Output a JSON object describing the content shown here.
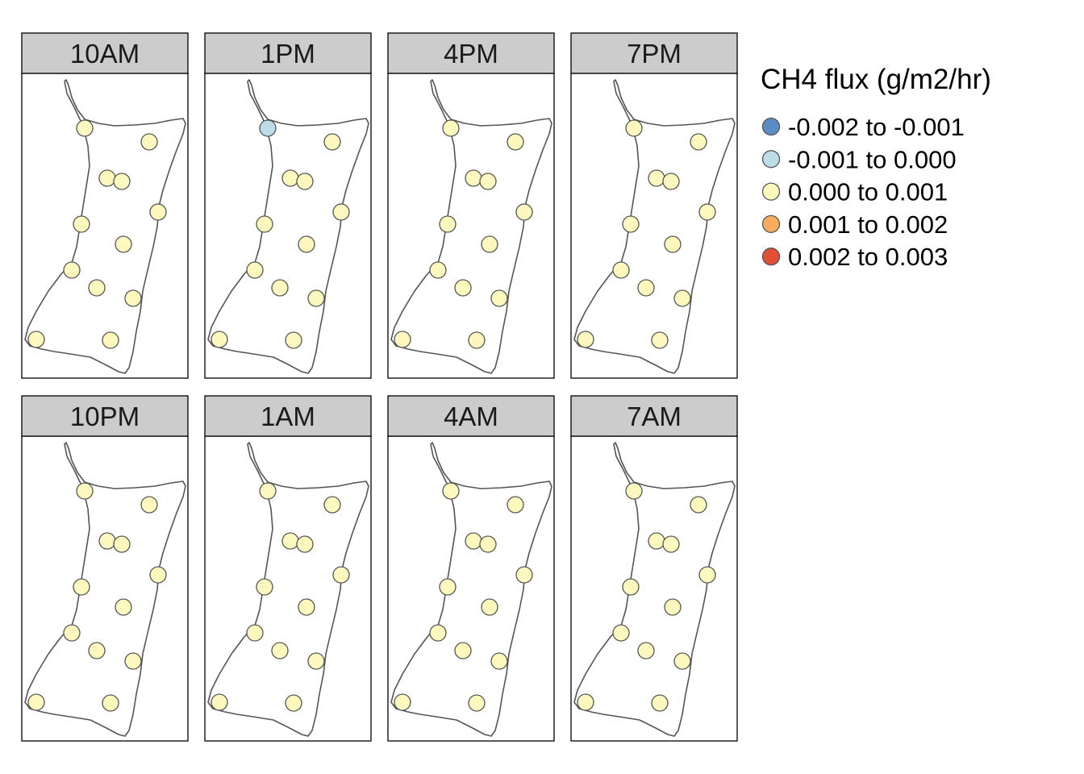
{
  "legend": {
    "title": "CH4 flux (g/m2/hr)",
    "items": [
      {
        "label": "-0.002 to -0.001",
        "color": "#5b8dc4"
      },
      {
        "label": "-0.001 to 0.000",
        "color": "#bcdde8"
      },
      {
        "label": "0.000 to 0.001",
        "color": "#fcf8be"
      },
      {
        "label": "0.001 to 0.002",
        "color": "#f9ab5e"
      },
      {
        "label": "0.002 to 0.003",
        "color": "#e24f35"
      }
    ]
  },
  "colors": {
    "strip_background": "#cccccc",
    "panel_border": "#000000",
    "outline": "#555555",
    "point_border": "#555555"
  },
  "panels": [
    {
      "title": "10AM",
      "point_classes": [
        2,
        2,
        2,
        2,
        2,
        2,
        2,
        2,
        2,
        2,
        2,
        2,
        2
      ]
    },
    {
      "title": "1PM",
      "point_classes": [
        1,
        2,
        2,
        2,
        2,
        2,
        2,
        2,
        2,
        2,
        2,
        2,
        2
      ]
    },
    {
      "title": "4PM",
      "point_classes": [
        2,
        2,
        2,
        2,
        2,
        2,
        2,
        2,
        2,
        2,
        2,
        2,
        2
      ]
    },
    {
      "title": "7PM",
      "point_classes": [
        2,
        2,
        2,
        2,
        2,
        2,
        2,
        2,
        2,
        2,
        2,
        2,
        2
      ]
    },
    {
      "title": "10PM",
      "point_classes": [
        2,
        2,
        2,
        2,
        2,
        2,
        2,
        2,
        2,
        2,
        2,
        2,
        2
      ]
    },
    {
      "title": "1AM",
      "point_classes": [
        2,
        2,
        2,
        2,
        2,
        2,
        2,
        2,
        2,
        2,
        2,
        2,
        2
      ]
    },
    {
      "title": "4AM",
      "point_classes": [
        2,
        2,
        2,
        2,
        2,
        2,
        2,
        2,
        2,
        2,
        2,
        2,
        2
      ]
    },
    {
      "title": "7AM",
      "point_classes": [
        2,
        2,
        2,
        2,
        2,
        2,
        2,
        2,
        2,
        2,
        2,
        2,
        2
      ]
    }
  ]
}
